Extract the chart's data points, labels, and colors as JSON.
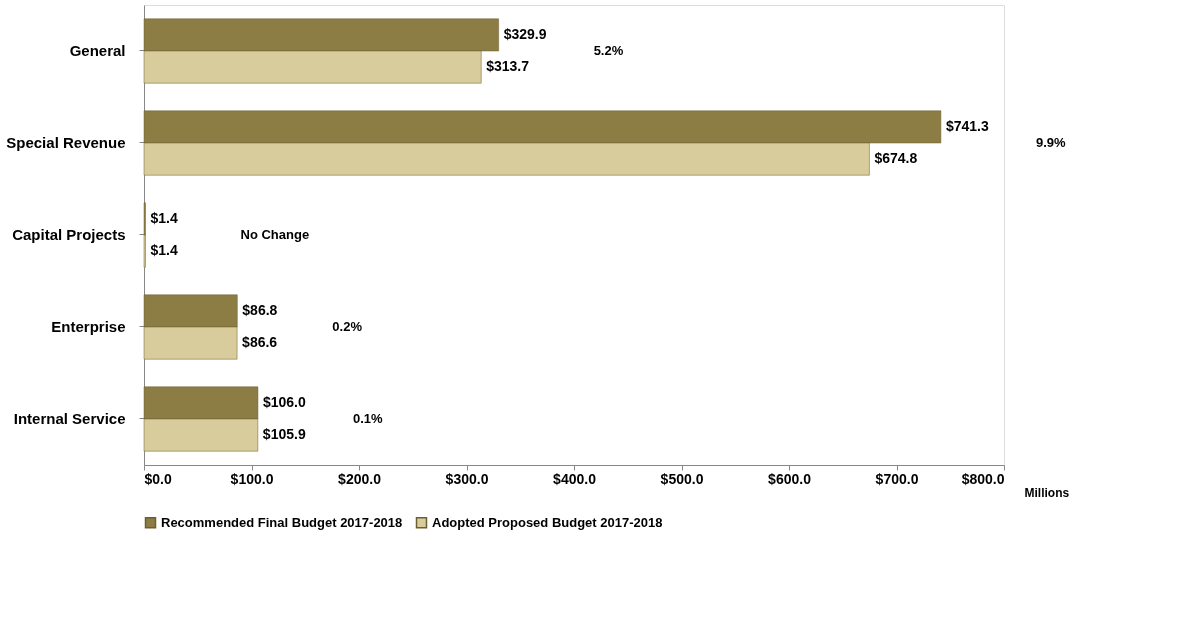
{
  "chart_data": {
    "type": "bar",
    "orientation": "horizontal",
    "categories": [
      "General",
      "Special Revenue",
      "Capital Projects",
      "Enterprise",
      "Internal Service"
    ],
    "series": [
      {
        "name": "Recommended Final Budget 2017-2018",
        "color": "#8c7d45",
        "values": [
          329.9,
          741.3,
          1.4,
          86.8,
          106.0
        ],
        "value_labels": [
          "$329.9",
          "$741.3",
          "$1.4",
          "$86.8",
          "$106.0"
        ]
      },
      {
        "name": "Adopted Proposed Budget 2017-2018",
        "color": "#d8cb9c",
        "values": [
          313.7,
          674.8,
          1.4,
          86.6,
          105.9
        ],
        "value_labels": [
          "$313.7",
          "$674.8",
          "$1.4",
          "$86.6",
          "$105.9"
        ]
      }
    ],
    "xlim": [
      0,
      800
    ],
    "xticks": [
      {
        "value": 0,
        "label": "$0.0"
      },
      {
        "value": 100,
        "label": "$100.0"
      },
      {
        "value": 200,
        "label": "$200.0"
      },
      {
        "value": 300,
        "label": "$300.0"
      },
      {
        "value": 400,
        "label": "$400.0"
      },
      {
        "value": 500,
        "label": "$500.0"
      },
      {
        "value": 600,
        "label": "$600.0"
      },
      {
        "value": 700,
        "label": "$700.0"
      },
      {
        "value": 800,
        "label": "$800.0"
      }
    ],
    "xlabel": "Millions",
    "annotations": [
      "5.2%",
      "9.9%",
      "No Change",
      "0.2%",
      "0.1%"
    ],
    "grid": false,
    "legend": "bottom"
  }
}
